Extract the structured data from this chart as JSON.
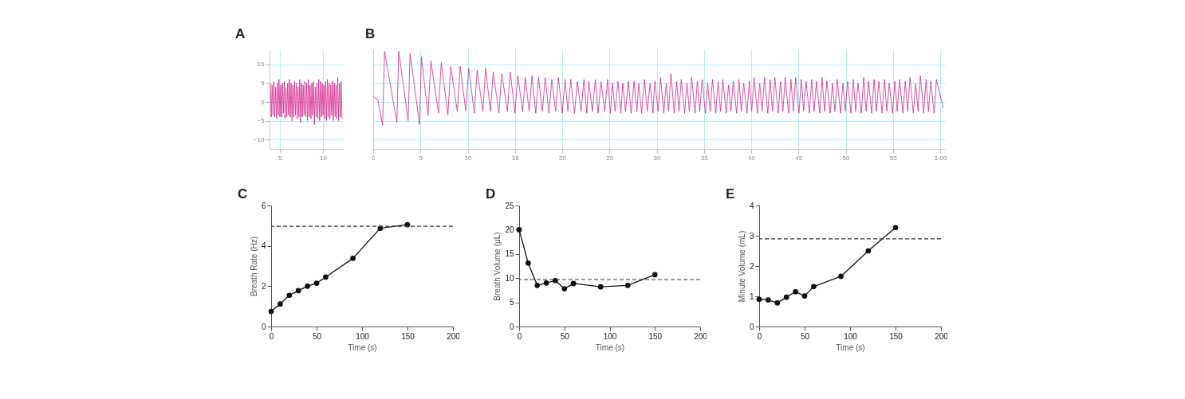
{
  "chart_data": [
    {
      "type": "line",
      "title": "A",
      "xlim": [
        3.8,
        12.3
      ],
      "xticks": [
        5,
        10
      ],
      "ylim": [
        -12.5,
        14
      ],
      "yticks": [
        -10,
        -5,
        0,
        5,
        10
      ],
      "grid": true,
      "series": [
        {
          "color": "#d6288c",
          "x": [
            3.9,
            4.0,
            4.1,
            4.2,
            4.3,
            4.4,
            4.5,
            4.6,
            4.7,
            4.8,
            4.9,
            5.0,
            5.1,
            5.2,
            5.3,
            5.4,
            5.5,
            5.6,
            5.7,
            5.8,
            5.9,
            6.0,
            6.1,
            6.2,
            6.3,
            6.4,
            6.5,
            6.6,
            6.7,
            6.8,
            6.9,
            7.0,
            7.1,
            7.2,
            7.3,
            7.4,
            7.5,
            7.6,
            7.7,
            7.8,
            7.9,
            8.0,
            8.1,
            8.2,
            8.3,
            8.4,
            8.5,
            8.6,
            8.7,
            8.8,
            8.9,
            9.0,
            9.1,
            9.2,
            9.3,
            9.4,
            9.5,
            9.6,
            9.7,
            9.8,
            9.9,
            10.0,
            10.1,
            10.2,
            10.3,
            10.4,
            10.5,
            10.6,
            10.7,
            10.8,
            10.9,
            11.0,
            11.1,
            11.2,
            11.3,
            11.4,
            11.5,
            11.6,
            11.7,
            11.8,
            11.9,
            12.0,
            12.1,
            12.2
          ],
          "values": [
            5,
            -4,
            4.5,
            -3.5,
            5.5,
            -4,
            4,
            -4.5,
            5,
            -3.5,
            6,
            -4,
            4.5,
            -4,
            5,
            -3,
            5.5,
            -4.5,
            4,
            -4,
            5,
            -3.5,
            6,
            -4,
            5,
            -5,
            4.5,
            -4,
            5.5,
            -3.5,
            5,
            -4.5,
            4,
            -4,
            6,
            -5.5,
            5,
            -4,
            4.5,
            -3.5,
            5.5,
            -4,
            5,
            -5,
            6,
            -4,
            4.5,
            -4.5,
            5,
            -3.5,
            5.5,
            -6,
            4,
            -4,
            5,
            -4.5,
            6,
            -5,
            5.5,
            -4,
            5,
            -3.5,
            4.5,
            -4.5,
            5.5,
            -5,
            6,
            -4,
            5,
            -4.5,
            4.5,
            -3.5,
            5.5,
            -5,
            5,
            -4,
            4.5,
            -4.5,
            6.5,
            -5,
            5,
            -4,
            5.5,
            -4.5
          ]
        }
      ]
    },
    {
      "type": "line",
      "title": "B",
      "xlim": [
        0,
        60.5
      ],
      "xticks": [
        0,
        5,
        10,
        15,
        20,
        25,
        30,
        35,
        40,
        45,
        50,
        55,
        {
          "value": 60,
          "label": "1:00"
        }
      ],
      "ylim": [
        -12.5,
        14
      ],
      "yticks": [
        -10,
        -5,
        0,
        5,
        10
      ],
      "grid": true,
      "tick_labels": "x",
      "series": [
        {
          "color": "#d6288c",
          "x": [
            0,
            0.5,
            1.0,
            1.2,
            2.5,
            2.7,
            3.7,
            3.9,
            4.9,
            5.1,
            5.8,
            6.1,
            6.9,
            7.2,
            7.9,
            8.2,
            8.9,
            9.2,
            9.8,
            10.1,
            10.7,
            11.0,
            11.6,
            11.9,
            12.4,
            12.7,
            13.3,
            13.6,
            14.2,
            14.5,
            15.0,
            15.3,
            15.8,
            16.1,
            16.5,
            16.8,
            17.2,
            17.5,
            17.9,
            18.2,
            18.6,
            18.9,
            19.3,
            19.6,
            20.0,
            20.3,
            20.6,
            20.9,
            21.3,
            21.6,
            22.0,
            22.3,
            22.6,
            22.8,
            23.2,
            23.5,
            23.8,
            24.1,
            24.5,
            24.8,
            25.1,
            25.3,
            25.6,
            25.9,
            26.2,
            26.4,
            26.7,
            27.0,
            27.3,
            27.6,
            27.9,
            28.1,
            28.4,
            28.7,
            29.0,
            29.3,
            29.6,
            29.8,
            30.15,
            30.4,
            30.75,
            31.0,
            31.25,
            31.5,
            31.85,
            32.1,
            32.35,
            32.6,
            32.95,
            33.2,
            33.45,
            33.7,
            34.05,
            34.3,
            34.55,
            34.8,
            35.15,
            35.4,
            35.65,
            35.9,
            36.25,
            36.5,
            36.75,
            37.0,
            37.35,
            37.6,
            37.85,
            38.1,
            38.45,
            38.7,
            38.95,
            39.2,
            39.55,
            39.8,
            40.05,
            40.3,
            40.65,
            40.9,
            41.15,
            41.4,
            41.75,
            42.0,
            42.25,
            42.5,
            42.85,
            43.1,
            43.35,
            43.6,
            43.95,
            44.2,
            44.45,
            44.7,
            45.05,
            45.3,
            45.55,
            45.8,
            46.15,
            46.4,
            46.65,
            46.9,
            47.25,
            47.5,
            47.75,
            48.0,
            48.35,
            48.6,
            48.85,
            49.1,
            49.45,
            49.7,
            49.95,
            50.2,
            50.55,
            50.8,
            51.05,
            51.3,
            51.65,
            51.9,
            52.15,
            52.4,
            52.75,
            53.0,
            53.25,
            53.5,
            53.85,
            54.1,
            54.35,
            54.6,
            54.95,
            55.2,
            55.45,
            55.7,
            56.05,
            56.3,
            56.55,
            56.8,
            57.15,
            57.4,
            57.65,
            57.9,
            58.25,
            58.5,
            58.75,
            59.0,
            59.35,
            59.6,
            60.3
          ],
          "values": [
            1.5,
            0.5,
            -6.2,
            13.5,
            -5.5,
            13.5,
            -5,
            13,
            -6,
            12,
            -3.5,
            11,
            -3,
            10.5,
            -3.5,
            9.5,
            -2.5,
            9.5,
            -2.5,
            9,
            -3,
            8.5,
            -2.5,
            9,
            -2.5,
            8,
            -3,
            7.5,
            -2.5,
            8,
            -3,
            7,
            -2.5,
            6.5,
            -2.5,
            7,
            -3,
            6.5,
            -2.5,
            6.5,
            -3,
            6,
            -2.5,
            6.5,
            -3,
            6,
            -2.5,
            6,
            -3,
            5.5,
            -2.5,
            6,
            -3,
            5.5,
            -2.5,
            6,
            -3,
            5.5,
            -2.5,
            6,
            -3,
            5,
            -2.5,
            5.5,
            -3,
            5,
            -2.5,
            5.5,
            -3,
            5.5,
            -2.5,
            5,
            -3,
            6,
            -2.5,
            5,
            -3,
            5.5,
            -2.5,
            6.5,
            -3,
            5,
            -2.5,
            7.5,
            -3,
            5.5,
            -2.5,
            6,
            -3,
            5,
            -2.5,
            6.5,
            -3,
            5.5,
            -2.5,
            6,
            -3,
            5,
            -2.5,
            6,
            -3,
            5.5,
            -2.5,
            6,
            -3,
            4.5,
            -2.5,
            5.5,
            -3,
            6,
            -2.5,
            5,
            -3,
            5.5,
            -2.5,
            6.5,
            -3,
            5,
            -2.5,
            6.5,
            -3,
            6,
            -2.5,
            6.5,
            -3,
            5.5,
            -2.5,
            6.5,
            -3,
            6,
            -2.5,
            6.5,
            -3,
            6,
            -2.5,
            5.5,
            -3,
            6,
            -2.5,
            5.5,
            -3,
            6.5,
            -2.5,
            5.5,
            -3,
            5,
            -2.5,
            6,
            -3,
            5,
            -2.5,
            5.5,
            -3,
            6,
            -2.5,
            5,
            -3,
            6.5,
            -2.5,
            5.5,
            -3,
            6,
            -2.5,
            5.5,
            -3,
            6,
            -2.5,
            5,
            -3,
            5.5,
            -2.5,
            6,
            -3,
            5.5,
            -2.5,
            6.5,
            -3,
            5,
            -2.5,
            7,
            -3,
            6,
            -2.5,
            5.5,
            -3,
            6,
            -1.5
          ]
        }
      ]
    },
    {
      "type": "line",
      "title": "C",
      "xlabel": "Time (s)",
      "ylabel": "Breath Rate (Hz)",
      "xlim": [
        0,
        200
      ],
      "xticks": [
        0,
        50,
        100,
        150,
        200
      ],
      "ylim": [
        0,
        6
      ],
      "yticks": [
        0,
        2,
        4,
        6
      ],
      "marker": "circle",
      "x": [
        0,
        10,
        20,
        30,
        40,
        50,
        60,
        90,
        120,
        150
      ],
      "series": [
        {
          "color": "#111111",
          "values": [
            0.75,
            1.12,
            1.55,
            1.78,
            2.0,
            2.15,
            2.45,
            3.38,
            4.87,
            5.05
          ]
        }
      ],
      "ref_lines": [
        {
          "axis": "y",
          "value": 4.97,
          "line_style": "dashed"
        }
      ]
    },
    {
      "type": "line",
      "title": "D",
      "xlabel": "Time (s)",
      "ylabel": "Breath Volume (μL)",
      "xlim": [
        0,
        200
      ],
      "xticks": [
        0,
        50,
        100,
        150,
        200
      ],
      "ylim": [
        0,
        25
      ],
      "yticks": [
        0,
        5,
        10,
        15,
        20,
        25
      ],
      "marker": "circle",
      "x": [
        0,
        10,
        20,
        30,
        40,
        50,
        60,
        90,
        120,
        150
      ],
      "series": [
        {
          "color": "#111111",
          "values": [
            20,
            13.1,
            8.5,
            9.0,
            9.5,
            7.8,
            8.9,
            8.2,
            8.5,
            10.7
          ]
        }
      ],
      "ref_lines": [
        {
          "axis": "y",
          "value": 9.7,
          "line_style": "dashed"
        }
      ]
    },
    {
      "type": "line",
      "title": "E",
      "xlabel": "Time (s)",
      "ylabel": "Minute Volume (mL)",
      "xlim": [
        0,
        200
      ],
      "xticks": [
        0,
        50,
        100,
        150,
        200
      ],
      "ylim": [
        0,
        4
      ],
      "yticks": [
        0,
        1,
        2,
        3,
        4
      ],
      "marker": "circle",
      "x": [
        0,
        10,
        20,
        30,
        40,
        50,
        60,
        90,
        120,
        150
      ],
      "series": [
        {
          "color": "#111111",
          "values": [
            0.9,
            0.88,
            0.78,
            0.97,
            1.15,
            1.01,
            1.32,
            1.66,
            2.5,
            3.27
          ]
        }
      ],
      "ref_lines": [
        {
          "axis": "y",
          "value": 2.9,
          "line_style": "dashed"
        }
      ]
    }
  ]
}
